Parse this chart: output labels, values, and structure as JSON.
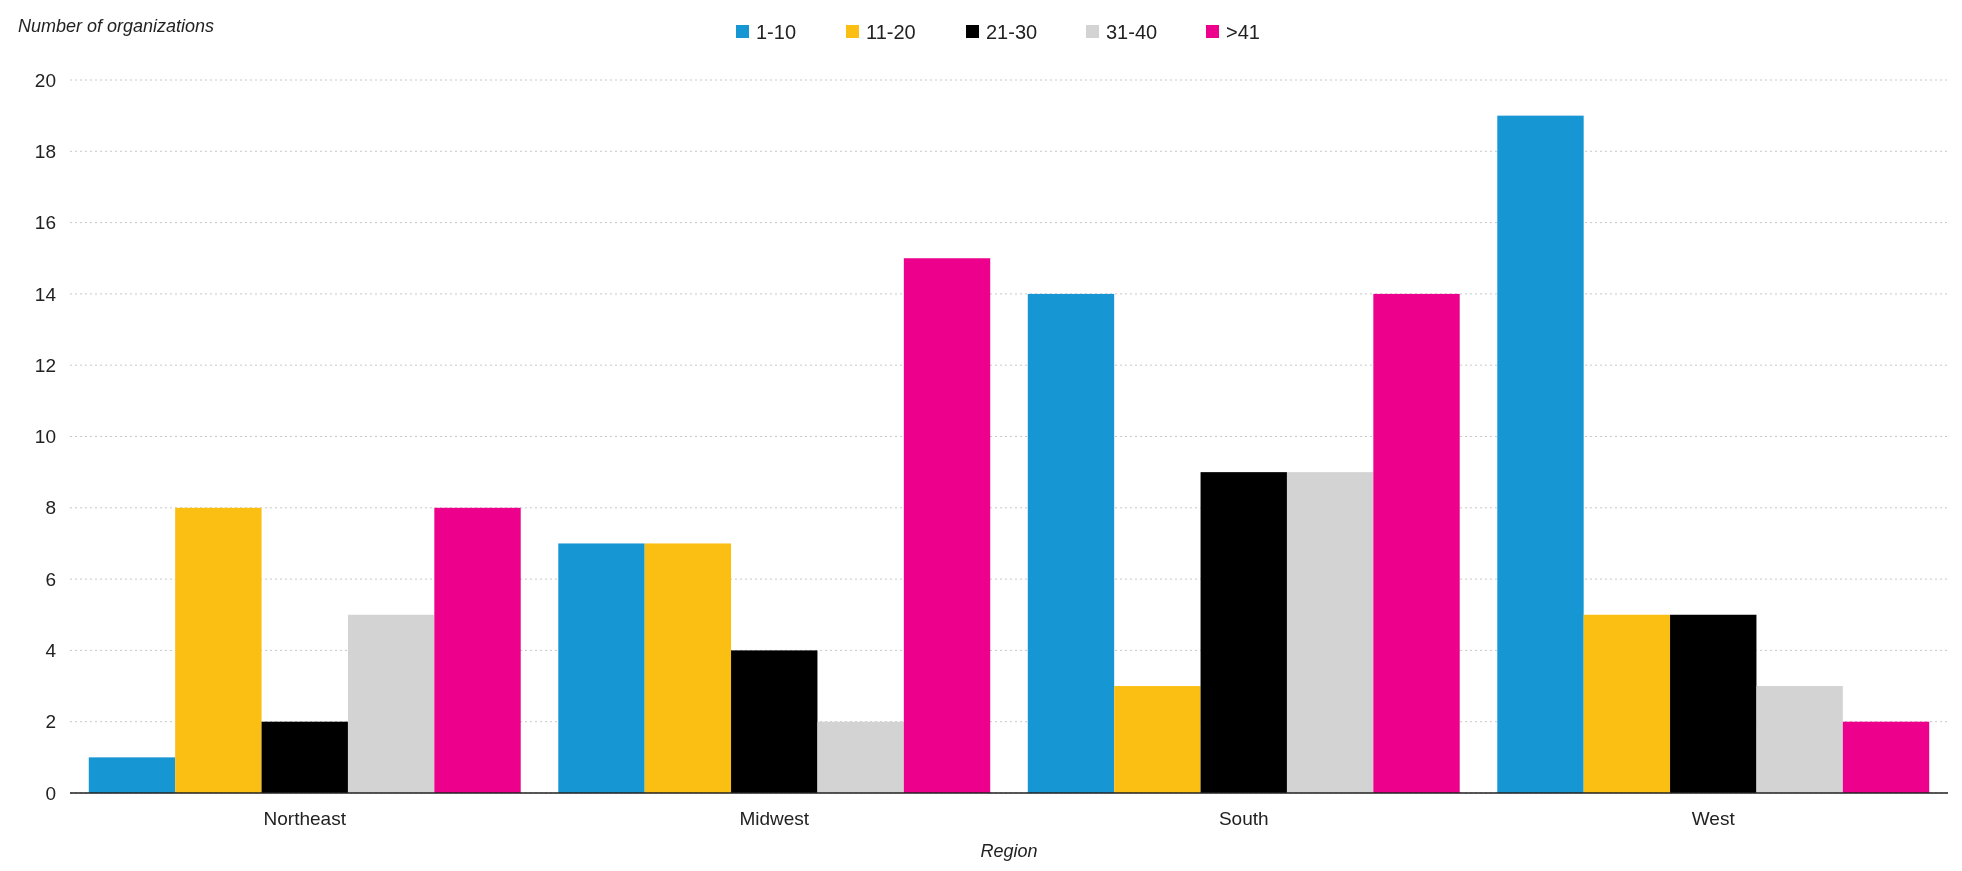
{
  "chart_data": {
    "type": "bar",
    "ylabel": "Number of organizations",
    "xlabel": "Region",
    "categories": [
      "Northeast",
      "Midwest",
      "South",
      "West"
    ],
    "series": [
      {
        "name": "1-10",
        "color": "#1796d4",
        "values": [
          1,
          7,
          14,
          19
        ]
      },
      {
        "name": "11-20",
        "color": "#fbbf14",
        "values": [
          8,
          7,
          3,
          5
        ]
      },
      {
        "name": "21-30",
        "color": "#000000",
        "values": [
          2,
          4,
          9,
          5
        ]
      },
      {
        "name": "31-40",
        "color": "#d3d3d3",
        "values": [
          5,
          2,
          9,
          3
        ]
      },
      {
        "name": ">41",
        "color": "#ec008c",
        "values": [
          8,
          15,
          14,
          2
        ]
      }
    ],
    "ylim": [
      0,
      20
    ],
    "yticks": [
      0,
      2,
      4,
      6,
      8,
      10,
      12,
      14,
      16,
      18,
      20
    ],
    "grid": "y",
    "legend": "top"
  }
}
